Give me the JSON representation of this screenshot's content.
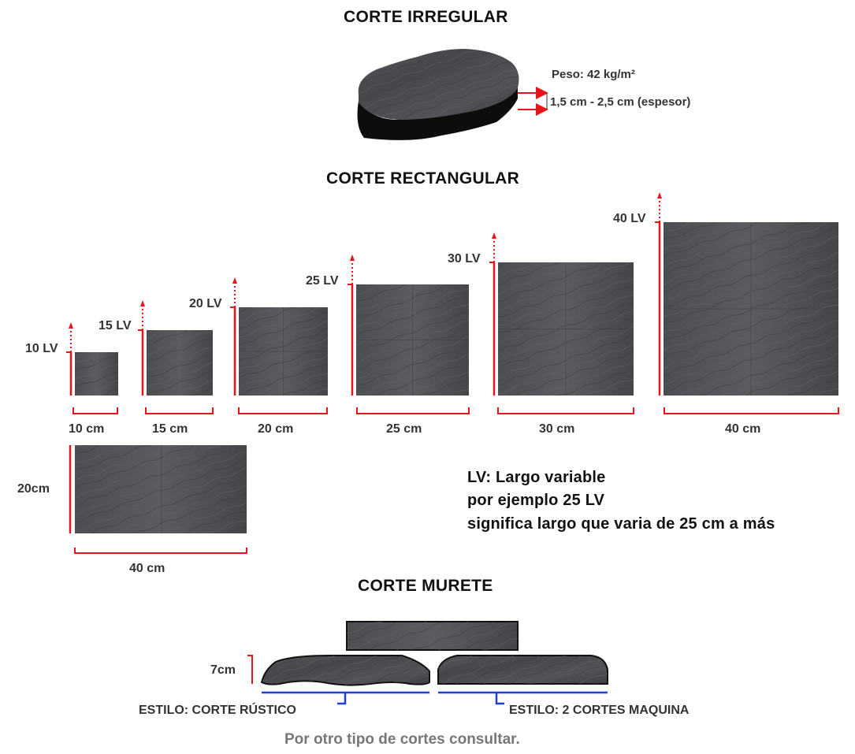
{
  "irregular": {
    "title": "CORTE IRREGULAR",
    "weight_label": "Peso: 42 kg/m²",
    "thickness_label": "1,5 cm - 2,5  cm (espesor)"
  },
  "rectangular": {
    "title": "CORTE RECTANGULAR",
    "pieces": [
      {
        "lv_label": "10 LV",
        "width_label": "10 cm"
      },
      {
        "lv_label": "15 LV",
        "width_label": "15 cm"
      },
      {
        "lv_label": "20 LV",
        "width_label": "20 cm"
      },
      {
        "lv_label": "25 LV",
        "width_label": "25 cm"
      },
      {
        "lv_label": "30 LV",
        "width_label": "30 cm"
      },
      {
        "lv_label": "40 LV",
        "width_label": "40 cm"
      }
    ],
    "extra_piece": {
      "height_label": "20cm",
      "width_label": "40 cm"
    }
  },
  "legend": {
    "line1": "LV: Largo variable",
    "line2": "por ejemplo 25 LV",
    "line3": "significa largo que varia de 25 cm a más"
  },
  "murete": {
    "title": "CORTE MURETE",
    "height_label": "7cm",
    "style_rustic": "ESTILO: CORTE RÚSTICO",
    "style_machine": "ESTILO: 2 CORTES MAQUINA"
  },
  "footer": "Por otro tipo de cortes consultar.",
  "colors": {
    "dimension_red": "#e8141b",
    "bracket_blue": "#1f3fd6",
    "stone": "#4a4b4d"
  }
}
